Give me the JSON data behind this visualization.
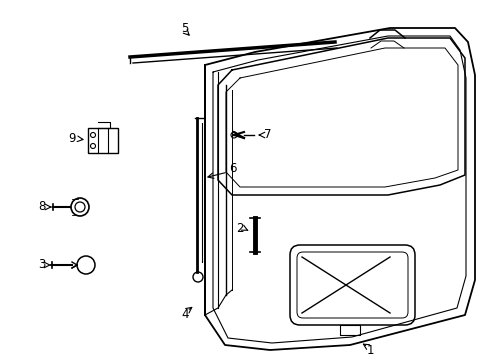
{
  "bg_color": "#ffffff",
  "line_color": "#000000",
  "figsize": [
    4.89,
    3.6
  ],
  "dpi": 100,
  "xlim": [
    0,
    489
  ],
  "ylim": [
    0,
    360
  ]
}
